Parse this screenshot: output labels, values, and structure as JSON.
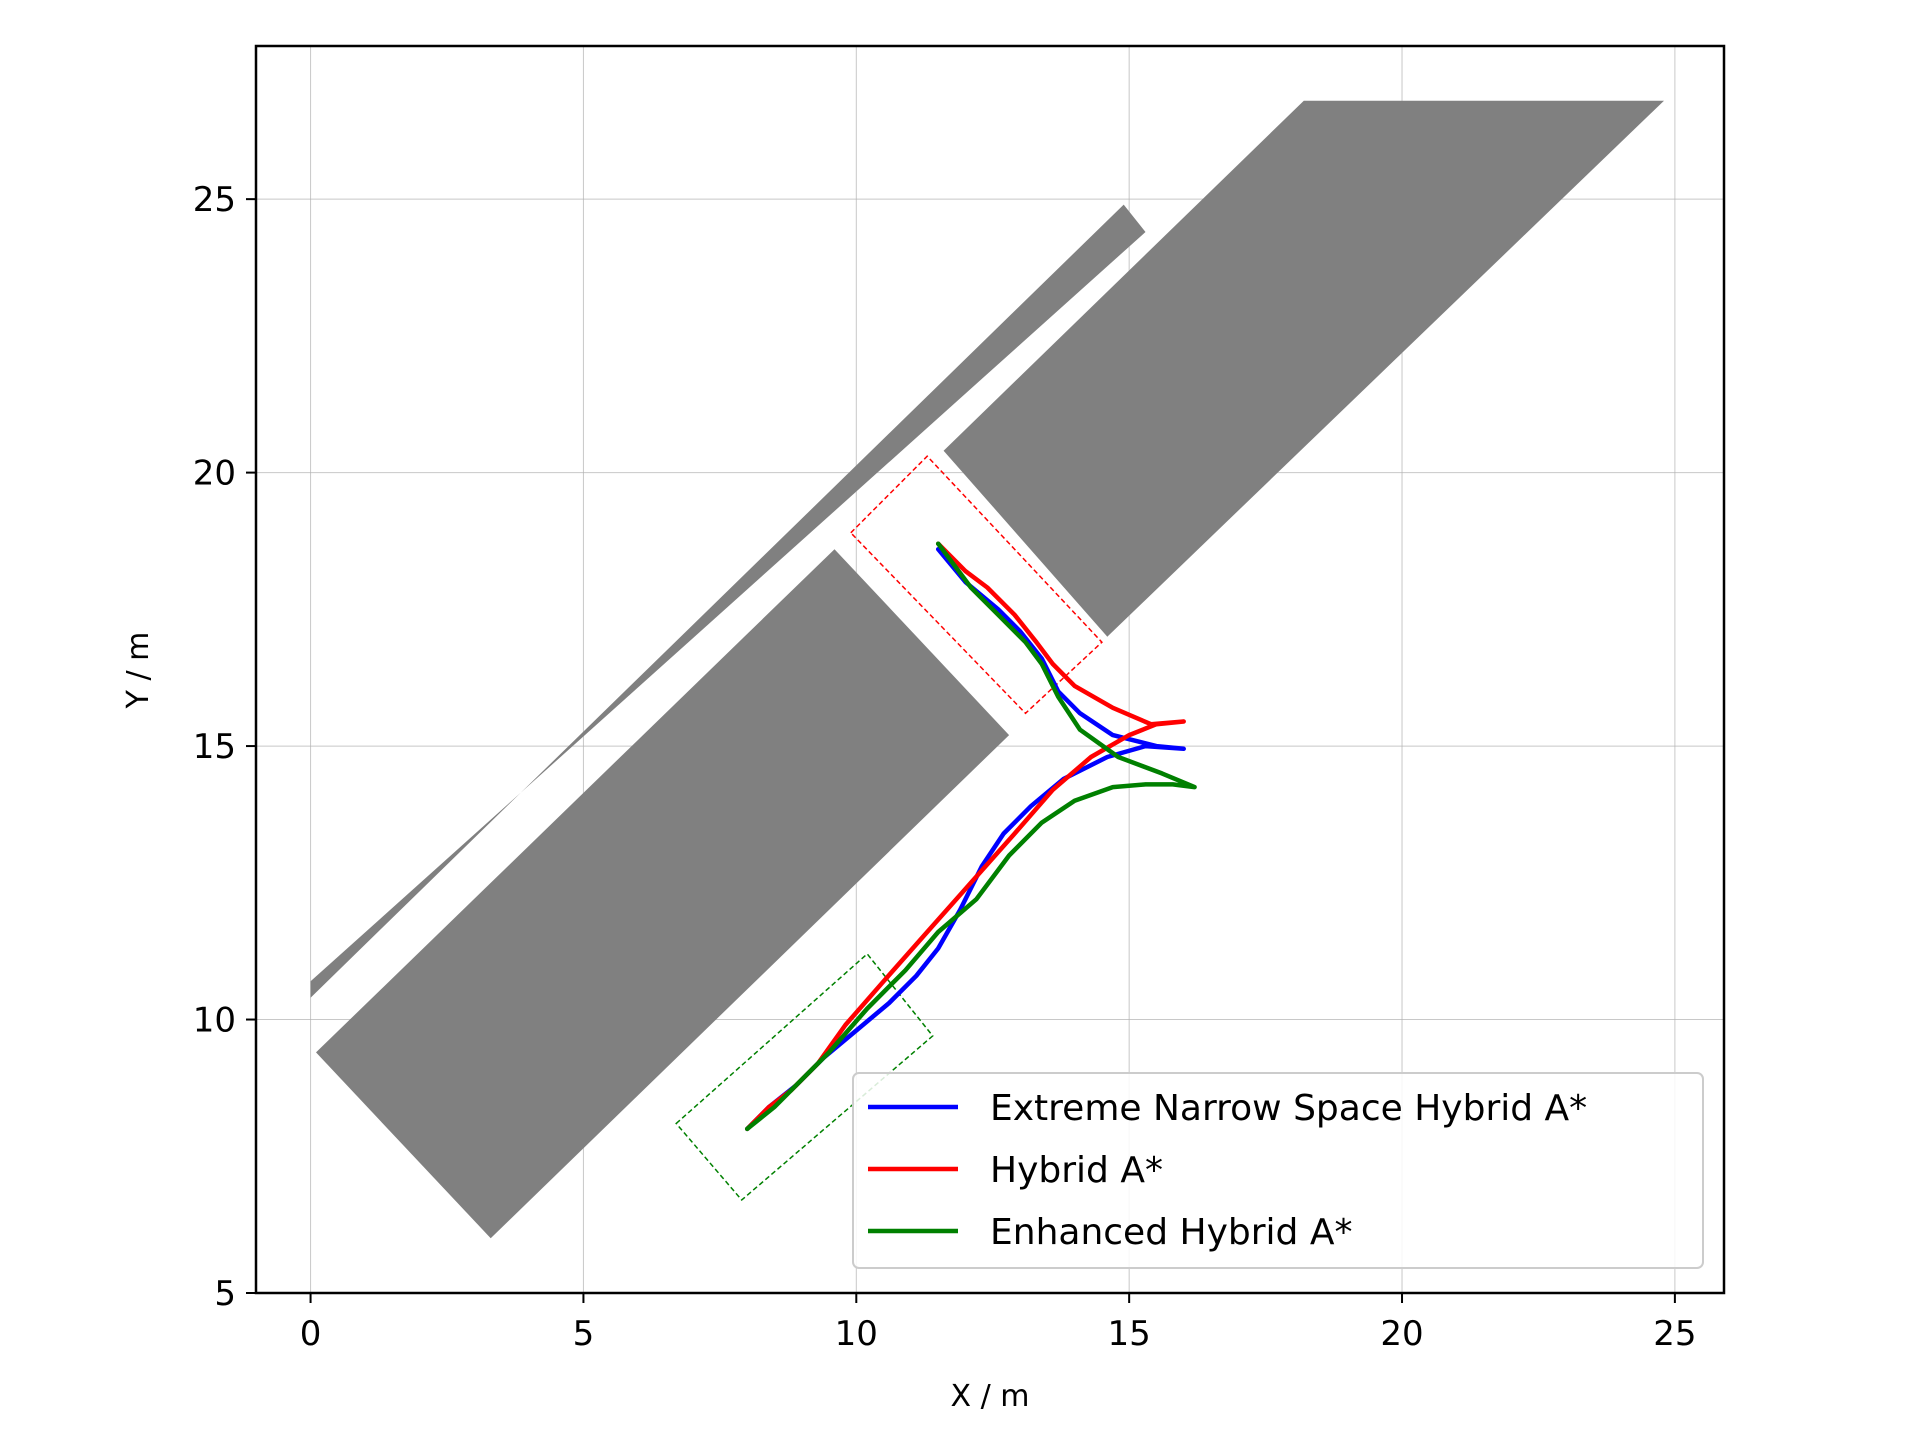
{
  "chart_data": {
    "type": "line",
    "xlabel": "X / m",
    "ylabel": "Y / m",
    "xlim": [
      -1,
      25.9
    ],
    "ylim": [
      5,
      27.8
    ],
    "xticks": [
      0,
      5,
      10,
      15,
      20,
      25
    ],
    "yticks": [
      5,
      10,
      15,
      20,
      25
    ],
    "grid": true,
    "legend_position": "lower-right",
    "obstacles": [
      {
        "name": "thin-strip",
        "points": [
          [
            0,
            10.4
          ],
          [
            14.9,
            24.9
          ],
          [
            15.3,
            24.4
          ],
          [
            0,
            10.7
          ]
        ]
      },
      {
        "name": "lower-left-block",
        "points": [
          [
            0.1,
            9.4
          ],
          [
            9.6,
            18.6
          ],
          [
            12.8,
            15.2
          ],
          [
            3.3,
            6.0
          ]
        ]
      },
      {
        "name": "upper-right-block",
        "points": [
          [
            11.6,
            20.4
          ],
          [
            18.2,
            26.8
          ],
          [
            24.8,
            26.8
          ],
          [
            14.6,
            17.0
          ]
        ]
      }
    ],
    "vehicle_boxes": [
      {
        "name": "goal-box",
        "color": "#ff0000",
        "points": [
          [
            9.9,
            18.9
          ],
          [
            11.3,
            20.3
          ],
          [
            14.5,
            16.9
          ],
          [
            13.1,
            15.6
          ]
        ]
      },
      {
        "name": "start-box",
        "color": "#008000",
        "points": [
          [
            6.7,
            8.1
          ],
          [
            10.2,
            11.2
          ],
          [
            11.4,
            9.7
          ],
          [
            7.9,
            6.7
          ]
        ]
      }
    ],
    "series": [
      {
        "name": "Extreme Narrow Space Hybrid A*",
        "color": "#0000ff",
        "points": [
          [
            8.0,
            8.0
          ],
          [
            8.4,
            8.4
          ],
          [
            8.9,
            8.8
          ],
          [
            9.4,
            9.3
          ],
          [
            10.0,
            9.8
          ],
          [
            10.6,
            10.3
          ],
          [
            11.1,
            10.8
          ],
          [
            11.5,
            11.3
          ],
          [
            11.9,
            12.0
          ],
          [
            12.3,
            12.8
          ],
          [
            12.7,
            13.4
          ],
          [
            13.2,
            13.9
          ],
          [
            13.8,
            14.4
          ],
          [
            14.6,
            14.8
          ],
          [
            15.3,
            15.0
          ],
          [
            16.0,
            14.95
          ],
          [
            15.5,
            15.0
          ],
          [
            14.7,
            15.2
          ],
          [
            14.1,
            15.6
          ],
          [
            13.7,
            16.0
          ],
          [
            13.4,
            16.6
          ],
          [
            13.0,
            17.1
          ],
          [
            12.6,
            17.5
          ],
          [
            12.0,
            18.0
          ],
          [
            11.5,
            18.6
          ]
        ]
      },
      {
        "name": "Hybrid A*",
        "color": "#ff0000",
        "points": [
          [
            8.0,
            8.0
          ],
          [
            8.4,
            8.4
          ],
          [
            8.8,
            8.7
          ],
          [
            9.3,
            9.2
          ],
          [
            9.8,
            9.9
          ],
          [
            10.5,
            10.7
          ],
          [
            11.3,
            11.6
          ],
          [
            12.1,
            12.5
          ],
          [
            12.9,
            13.4
          ],
          [
            13.6,
            14.2
          ],
          [
            14.3,
            14.8
          ],
          [
            15.0,
            15.2
          ],
          [
            15.5,
            15.4
          ],
          [
            16.0,
            15.45
          ],
          [
            15.4,
            15.4
          ],
          [
            14.7,
            15.7
          ],
          [
            14.0,
            16.1
          ],
          [
            13.6,
            16.5
          ],
          [
            13.3,
            16.9
          ],
          [
            12.9,
            17.4
          ],
          [
            12.4,
            17.9
          ],
          [
            12.0,
            18.2
          ],
          [
            11.5,
            18.7
          ]
        ]
      },
      {
        "name": "Enhanced Hybrid A*",
        "color": "#008000",
        "points": [
          [
            8.0,
            8.0
          ],
          [
            8.5,
            8.4
          ],
          [
            9.0,
            8.9
          ],
          [
            9.5,
            9.4
          ],
          [
            10.2,
            10.2
          ],
          [
            10.9,
            10.9
          ],
          [
            11.5,
            11.6
          ],
          [
            12.2,
            12.2
          ],
          [
            12.8,
            13.0
          ],
          [
            13.4,
            13.6
          ],
          [
            14.0,
            14.0
          ],
          [
            14.7,
            14.25
          ],
          [
            15.3,
            14.3
          ],
          [
            15.8,
            14.3
          ],
          [
            16.2,
            14.25
          ],
          [
            15.6,
            14.5
          ],
          [
            14.8,
            14.8
          ],
          [
            14.1,
            15.3
          ],
          [
            13.7,
            15.9
          ],
          [
            13.4,
            16.5
          ],
          [
            13.1,
            16.9
          ],
          [
            12.6,
            17.4
          ],
          [
            12.1,
            17.9
          ],
          [
            11.5,
            18.7
          ]
        ]
      }
    ]
  }
}
